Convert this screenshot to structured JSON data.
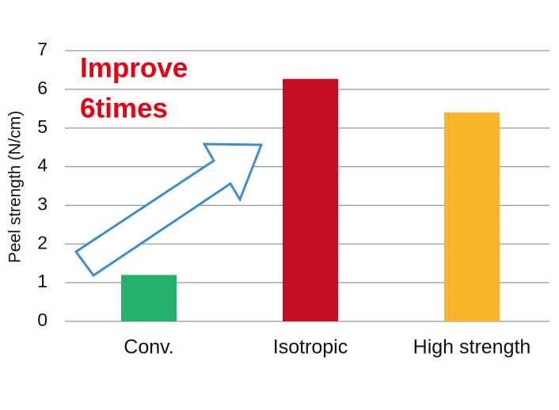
{
  "chart_data": {
    "type": "bar",
    "y_label": "Peel strength (N/cm)",
    "annotation": [
      "Improve",
      "6times"
    ],
    "annotation_color": "#e60012",
    "categories": [
      "Conv.",
      "Isotropic",
      "High strength"
    ],
    "values": [
      1.2,
      6.27,
      5.4
    ],
    "colors": [
      "#23b16c",
      "#c30d23",
      "#f6b52b"
    ],
    "ylim": [
      0,
      7
    ],
    "yticks": [
      0,
      1,
      2,
      3,
      4,
      5,
      6,
      7
    ],
    "grid": true
  }
}
